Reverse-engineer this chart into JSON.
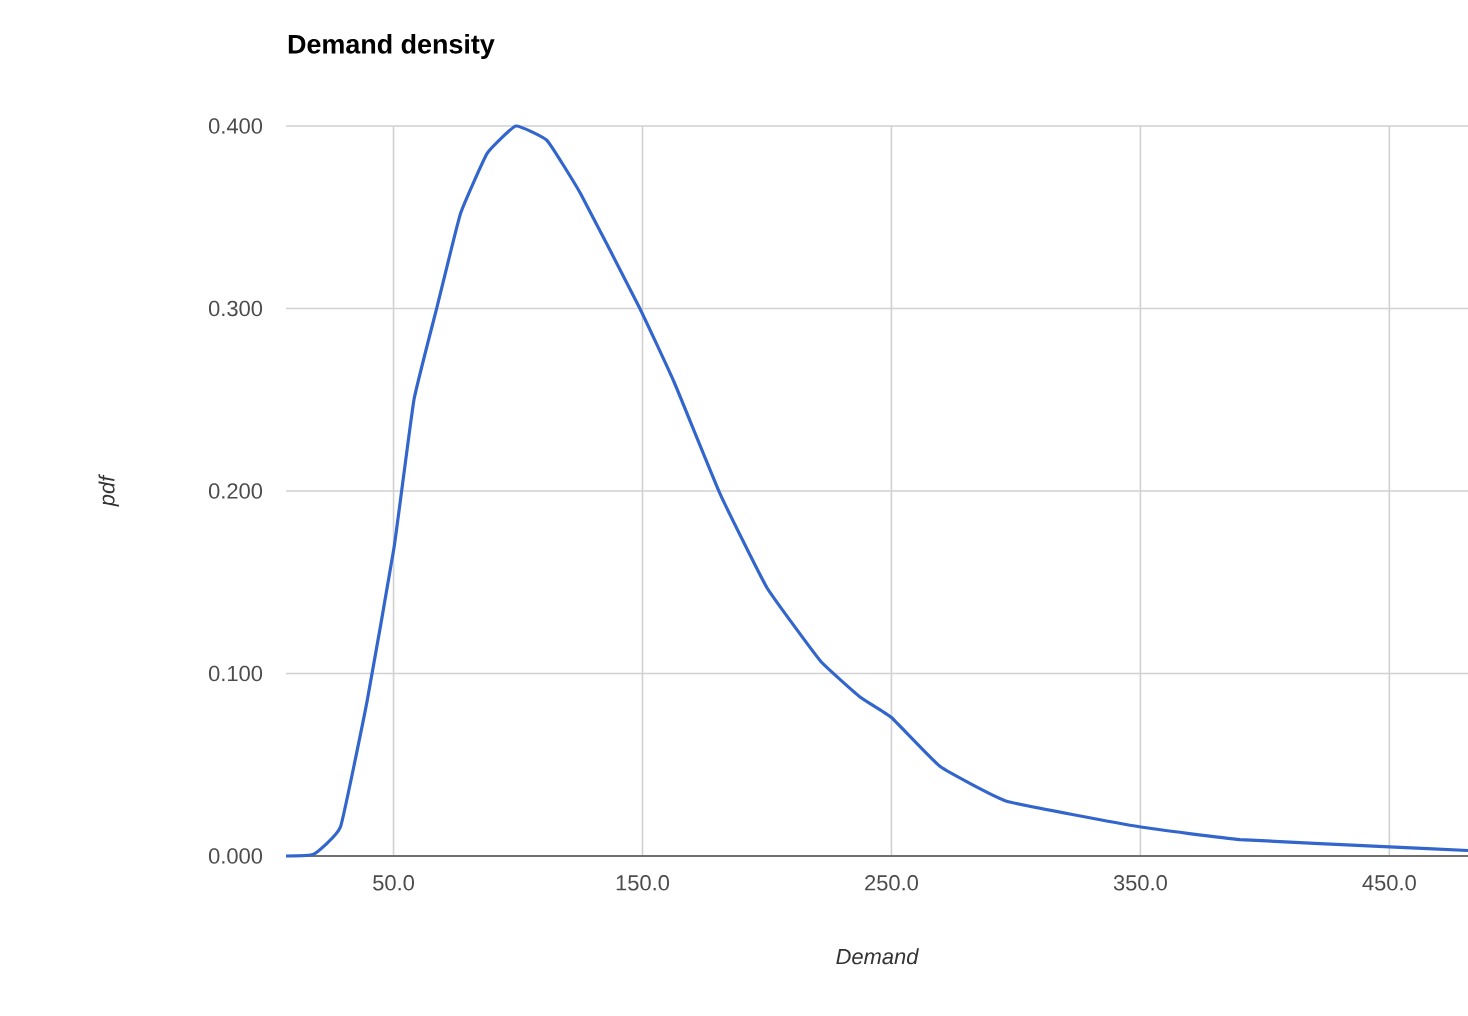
{
  "chart_data": {
    "type": "line",
    "title": "Demand density",
    "xlabel": "Demand",
    "ylabel": "pdf",
    "xlim": [
      6.8,
      481.6
    ],
    "ylim": [
      0,
      0.4
    ],
    "xticks": [
      {
        "value": 50,
        "label": "50.0"
      },
      {
        "value": 150,
        "label": "150.0"
      },
      {
        "value": 250,
        "label": "250.0"
      },
      {
        "value": 350,
        "label": "350.0"
      },
      {
        "value": 450,
        "label": "450.0"
      }
    ],
    "yticks": [
      {
        "value": 0,
        "label": "0.000"
      },
      {
        "value": 0.1,
        "label": "0.100"
      },
      {
        "value": 0.2,
        "label": "0.200"
      },
      {
        "value": 0.3,
        "label": "0.300"
      },
      {
        "value": 0.4,
        "label": "0.400"
      }
    ],
    "grid": true,
    "series": [
      {
        "color": "#3366cc",
        "x": [
          6.8,
          18.0,
          28.7,
          39.4,
          50.2,
          58.2,
          67.5,
          76.9,
          87.6,
          99.1,
          111.7,
          125.1,
          148.6,
          162.6,
          181.3,
          200.0,
          221.4,
          237.5,
          249.9,
          269.6,
          296.3,
          349.6,
          390.0,
          450.0,
          481.6
        ],
        "values": [
          0,
          0.001,
          0.016,
          0.085,
          0.169,
          0.25,
          0.301,
          0.352,
          0.385,
          0.4,
          0.392,
          0.363,
          0.301,
          0.26,
          0.198,
          0.147,
          0.107,
          0.087,
          0.076,
          0.049,
          0.03,
          0.016,
          0.009,
          0.005,
          0.003
        ]
      }
    ]
  }
}
